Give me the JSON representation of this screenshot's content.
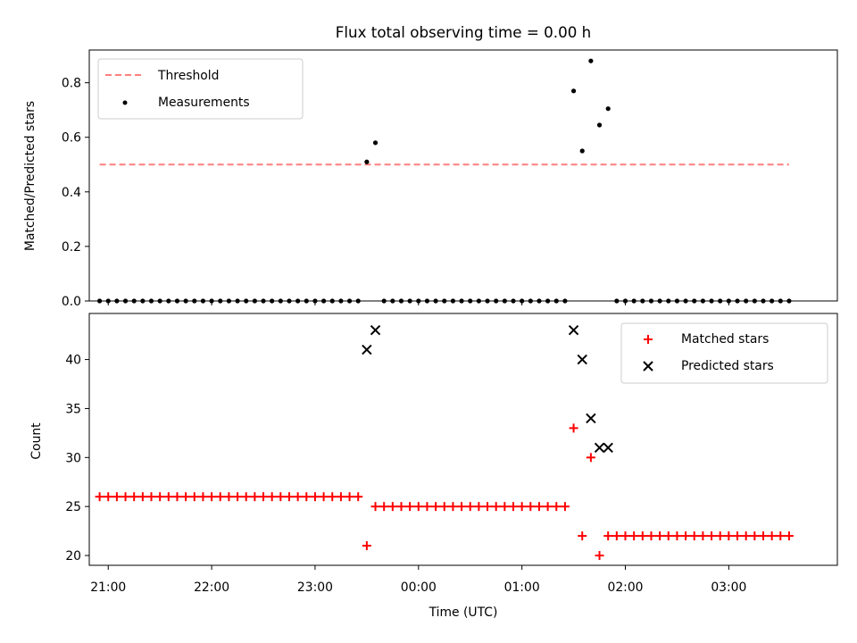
{
  "chart_data": [
    {
      "type": "scatter",
      "title": "Flux total observing time = 0.00 h",
      "xlabel": "",
      "ylabel": "Matched/Predicted stars",
      "ylim": [
        0,
        0.92
      ],
      "yticks": [
        "0.0",
        "0.2",
        "0.4",
        "0.6",
        "0.8"
      ],
      "xlim": [
        "20:49",
        "04:03"
      ],
      "grid": false,
      "legend": {
        "position": "top-left",
        "entries": [
          "Threshold",
          "Measurements"
        ]
      },
      "threshold": {
        "name": "Threshold",
        "value": 0.5,
        "color": "#ff7f7f",
        "x_start": "20:55",
        "x_end": "03:35"
      },
      "series": [
        {
          "name": "Measurements",
          "color": "#000000",
          "points": [
            [
              "20:55",
              0
            ],
            [
              "21:00",
              0
            ],
            [
              "21:05",
              0
            ],
            [
              "21:10",
              0
            ],
            [
              "21:15",
              0
            ],
            [
              "21:20",
              0
            ],
            [
              "21:25",
              0
            ],
            [
              "21:30",
              0
            ],
            [
              "21:35",
              0
            ],
            [
              "21:40",
              0
            ],
            [
              "21:45",
              0
            ],
            [
              "21:50",
              0
            ],
            [
              "21:55",
              0
            ],
            [
              "22:00",
              0
            ],
            [
              "22:05",
              0
            ],
            [
              "22:10",
              0
            ],
            [
              "22:15",
              0
            ],
            [
              "22:20",
              0
            ],
            [
              "22:25",
              0
            ],
            [
              "22:30",
              0
            ],
            [
              "22:35",
              0
            ],
            [
              "22:40",
              0
            ],
            [
              "22:45",
              0
            ],
            [
              "22:50",
              0
            ],
            [
              "22:55",
              0
            ],
            [
              "23:00",
              0
            ],
            [
              "23:05",
              0
            ],
            [
              "23:10",
              0
            ],
            [
              "23:15",
              0
            ],
            [
              "23:20",
              0
            ],
            [
              "23:25",
              0
            ],
            [
              "23:30",
              0.51
            ],
            [
              "23:35",
              0.58
            ],
            [
              "23:40",
              0
            ],
            [
              "23:45",
              0
            ],
            [
              "23:50",
              0
            ],
            [
              "23:55",
              0
            ],
            [
              "00:00",
              0
            ],
            [
              "00:05",
              0
            ],
            [
              "00:10",
              0
            ],
            [
              "00:15",
              0
            ],
            [
              "00:20",
              0
            ],
            [
              "00:25",
              0
            ],
            [
              "00:30",
              0
            ],
            [
              "00:35",
              0
            ],
            [
              "00:40",
              0
            ],
            [
              "00:45",
              0
            ],
            [
              "00:50",
              0
            ],
            [
              "00:55",
              0
            ],
            [
              "01:00",
              0
            ],
            [
              "01:05",
              0
            ],
            [
              "01:10",
              0
            ],
            [
              "01:15",
              0
            ],
            [
              "01:20",
              0
            ],
            [
              "01:25",
              0
            ],
            [
              "01:30",
              0.77
            ],
            [
              "01:35",
              0.55
            ],
            [
              "01:40",
              0.88
            ],
            [
              "01:45",
              0.645
            ],
            [
              "01:50",
              0.705
            ],
            [
              "01:55",
              0
            ],
            [
              "02:00",
              0
            ],
            [
              "02:05",
              0
            ],
            [
              "02:10",
              0
            ],
            [
              "02:15",
              0
            ],
            [
              "02:20",
              0
            ],
            [
              "02:25",
              0
            ],
            [
              "02:30",
              0
            ],
            [
              "02:35",
              0
            ],
            [
              "02:40",
              0
            ],
            [
              "02:45",
              0
            ],
            [
              "02:50",
              0
            ],
            [
              "02:55",
              0
            ],
            [
              "03:00",
              0
            ],
            [
              "03:05",
              0
            ],
            [
              "03:10",
              0
            ],
            [
              "03:15",
              0
            ],
            [
              "03:20",
              0
            ],
            [
              "03:25",
              0
            ],
            [
              "03:30",
              0
            ],
            [
              "03:35",
              0
            ]
          ]
        }
      ]
    },
    {
      "type": "scatter",
      "title": "",
      "xlabel": "Time (UTC)",
      "ylabel": "Count",
      "ylim": [
        19,
        44.7
      ],
      "yticks": [
        "20",
        "25",
        "30",
        "35",
        "40"
      ],
      "xticks": [
        "21:00",
        "22:00",
        "23:00",
        "00:00",
        "01:00",
        "02:00",
        "03:00"
      ],
      "xlim": [
        "20:49",
        "04:03"
      ],
      "grid": false,
      "legend": {
        "position": "top-right",
        "entries": [
          "Matched stars",
          "Predicted stars"
        ]
      },
      "series": [
        {
          "name": "Matched stars",
          "marker": "+",
          "color": "#ff0000",
          "points": [
            [
              "20:55",
              26
            ],
            [
              "21:00",
              26
            ],
            [
              "21:05",
              26
            ],
            [
              "21:10",
              26
            ],
            [
              "21:15",
              26
            ],
            [
              "21:20",
              26
            ],
            [
              "21:25",
              26
            ],
            [
              "21:30",
              26
            ],
            [
              "21:35",
              26
            ],
            [
              "21:40",
              26
            ],
            [
              "21:45",
              26
            ],
            [
              "21:50",
              26
            ],
            [
              "21:55",
              26
            ],
            [
              "22:00",
              26
            ],
            [
              "22:05",
              26
            ],
            [
              "22:10",
              26
            ],
            [
              "22:15",
              26
            ],
            [
              "22:20",
              26
            ],
            [
              "22:25",
              26
            ],
            [
              "22:30",
              26
            ],
            [
              "22:35",
              26
            ],
            [
              "22:40",
              26
            ],
            [
              "22:45",
              26
            ],
            [
              "22:50",
              26
            ],
            [
              "22:55",
              26
            ],
            [
              "23:00",
              26
            ],
            [
              "23:05",
              26
            ],
            [
              "23:10",
              26
            ],
            [
              "23:15",
              26
            ],
            [
              "23:20",
              26
            ],
            [
              "23:25",
              26
            ],
            [
              "23:30",
              21
            ],
            [
              "23:35",
              25
            ],
            [
              "23:40",
              25
            ],
            [
              "23:45",
              25
            ],
            [
              "23:50",
              25
            ],
            [
              "23:55",
              25
            ],
            [
              "00:00",
              25
            ],
            [
              "00:05",
              25
            ],
            [
              "00:10",
              25
            ],
            [
              "00:15",
              25
            ],
            [
              "00:20",
              25
            ],
            [
              "00:25",
              25
            ],
            [
              "00:30",
              25
            ],
            [
              "00:35",
              25
            ],
            [
              "00:40",
              25
            ],
            [
              "00:45",
              25
            ],
            [
              "00:50",
              25
            ],
            [
              "00:55",
              25
            ],
            [
              "01:00",
              25
            ],
            [
              "01:05",
              25
            ],
            [
              "01:10",
              25
            ],
            [
              "01:15",
              25
            ],
            [
              "01:20",
              25
            ],
            [
              "01:25",
              25
            ],
            [
              "01:30",
              33
            ],
            [
              "01:35",
              22
            ],
            [
              "01:40",
              30
            ],
            [
              "01:45",
              20
            ],
            [
              "01:50",
              22
            ],
            [
              "01:55",
              22
            ],
            [
              "02:00",
              22
            ],
            [
              "02:05",
              22
            ],
            [
              "02:10",
              22
            ],
            [
              "02:15",
              22
            ],
            [
              "02:20",
              22
            ],
            [
              "02:25",
              22
            ],
            [
              "02:30",
              22
            ],
            [
              "02:35",
              22
            ],
            [
              "02:40",
              22
            ],
            [
              "02:45",
              22
            ],
            [
              "02:50",
              22
            ],
            [
              "02:55",
              22
            ],
            [
              "03:00",
              22
            ],
            [
              "03:05",
              22
            ],
            [
              "03:10",
              22
            ],
            [
              "03:15",
              22
            ],
            [
              "03:20",
              22
            ],
            [
              "03:25",
              22
            ],
            [
              "03:30",
              22
            ],
            [
              "03:35",
              22
            ]
          ]
        },
        {
          "name": "Predicted stars",
          "marker": "x",
          "color": "#000000",
          "points": [
            [
              "23:30",
              41
            ],
            [
              "23:35",
              43
            ],
            [
              "01:30",
              43
            ],
            [
              "01:35",
              40
            ],
            [
              "01:40",
              34
            ],
            [
              "01:45",
              31
            ],
            [
              "01:50",
              31
            ]
          ]
        }
      ]
    }
  ]
}
